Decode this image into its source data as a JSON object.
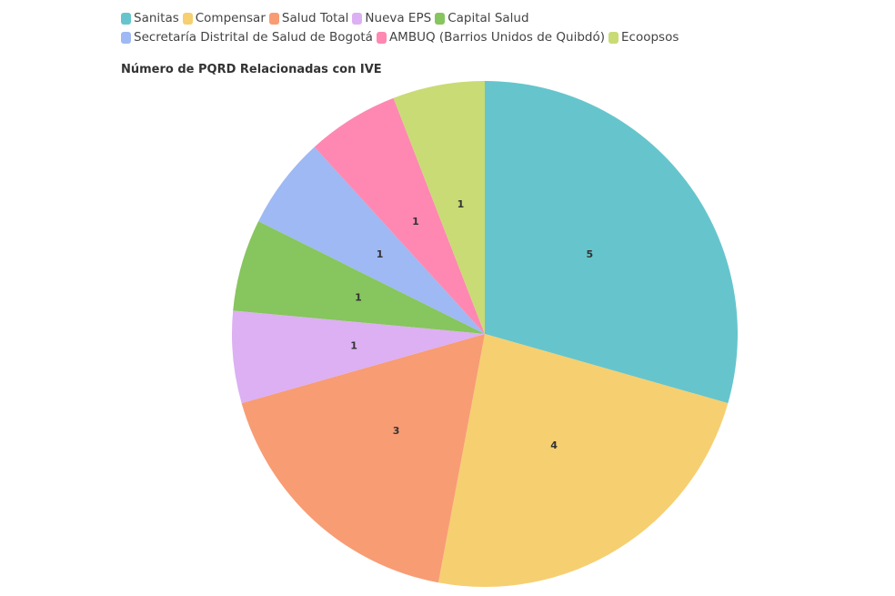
{
  "chart_data": {
    "type": "pie",
    "title": "Número de PQRD Relacionadas con IVE",
    "categories": [
      "Sanitas",
      "Compensar",
      "Salud Total",
      "Nueva EPS",
      "Capital Salud",
      "Secretaría Distrital de Salud de Bogotá",
      "AMBUQ (Barrios Unidos de Quibdó)",
      "Ecoopsos"
    ],
    "values": [
      5,
      4,
      3,
      1,
      1,
      1,
      1,
      1
    ],
    "colors": [
      "#66c5cc",
      "#f6cf71",
      "#f89c74",
      "#dcb0f2",
      "#87c55f",
      "#9eb9f3",
      "#fe88b1",
      "#c9db74"
    ]
  }
}
